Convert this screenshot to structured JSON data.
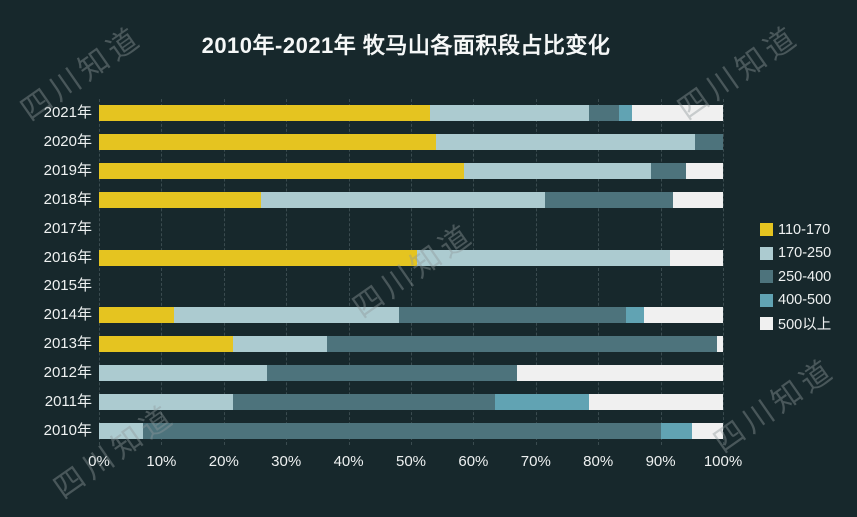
{
  "title": "2010年-2021年 牧马山各面积段占比变化",
  "watermark_text": "四川知道",
  "colors": {
    "background": "#17282c",
    "title_text": "#f5f7f7",
    "axis_text": "#eef1f1",
    "gridline": "#3a4b4f",
    "series_110_170": "#e5c420",
    "series_170_250": "#accbd0",
    "series_250_400": "#4d737c",
    "series_400_500": "#61a3b3",
    "series_500_plus": "#f0f0f0"
  },
  "chart_data": {
    "type": "bar",
    "orientation": "horizontal",
    "stacked": true,
    "unit": "percent",
    "title": "2010年-2021年 牧马山各面积段占比变化",
    "categories": [
      "2021年",
      "2020年",
      "2019年",
      "2018年",
      "2017年",
      "2016年",
      "2015年",
      "2014年",
      "2013年",
      "2012年",
      "2011年",
      "2010年"
    ],
    "series": [
      {
        "name": "110-170",
        "color": "#e5c420",
        "values": [
          53,
          54,
          58.5,
          26,
          0,
          51,
          0,
          12,
          21.5,
          0,
          0,
          0
        ]
      },
      {
        "name": "170-250",
        "color": "#accbd0",
        "values": [
          25.5,
          41.5,
          30,
          45.5,
          0,
          40.5,
          0,
          36,
          15,
          27,
          21.5,
          7
        ]
      },
      {
        "name": "250-400",
        "color": "#4d737c",
        "values": [
          4.8,
          4.5,
          5.5,
          20.5,
          0,
          0,
          0,
          36.5,
          62.5,
          40,
          42,
          83
        ]
      },
      {
        "name": "400-500",
        "color": "#61a3b3",
        "values": [
          2.2,
          0,
          0,
          0,
          0,
          0,
          0,
          2.8,
          0,
          0,
          15,
          5
        ]
      },
      {
        "name": "500以上",
        "color": "#f0f0f0",
        "values": [
          14.5,
          0,
          6,
          8,
          0,
          8.5,
          0,
          12.7,
          1,
          33,
          21.5,
          5
        ]
      }
    ],
    "x_ticks": [
      "0%",
      "10%",
      "20%",
      "30%",
      "40%",
      "50%",
      "60%",
      "70%",
      "80%",
      "90%",
      "100%"
    ],
    "xlim": [
      0,
      100
    ],
    "grid": "dashed-vertical",
    "legend_position": "right"
  }
}
